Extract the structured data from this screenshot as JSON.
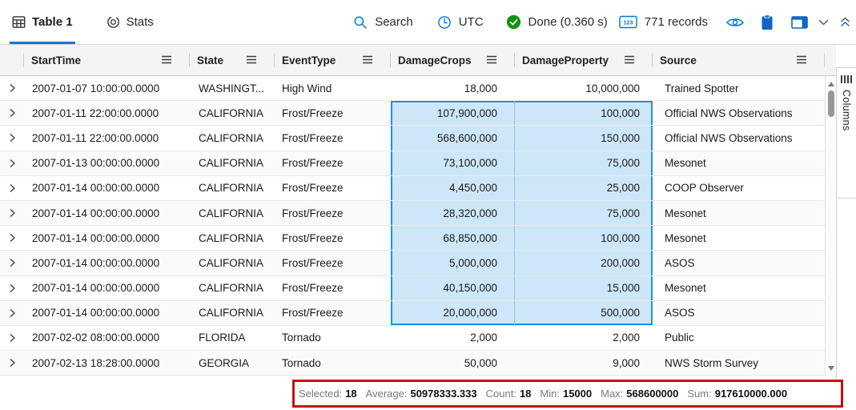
{
  "toolbar": {
    "tabs": [
      {
        "id": "table1",
        "label": "Table 1",
        "icon": "table-grid-icon",
        "active": true
      },
      {
        "id": "stats",
        "label": "Stats",
        "icon": "donut-chart-icon",
        "active": false
      }
    ],
    "search_label": "Search",
    "timezone_label": "UTC",
    "query_status": "Done (0.360 s)",
    "record_count": "771 records",
    "icons": [
      "search-icon",
      "clock-icon",
      "done-check-icon",
      "number-badge-icon",
      "eye-icon",
      "clipboard-icon",
      "panel-layout-icon",
      "chevron-down-icon",
      "collapse-up-icon"
    ]
  },
  "grid": {
    "columns": [
      {
        "label": "StartTime",
        "align": "left"
      },
      {
        "label": "State",
        "align": "left"
      },
      {
        "label": "EventType",
        "align": "left"
      },
      {
        "label": "DamageCrops",
        "align": "right"
      },
      {
        "label": "DamageProperty",
        "align": "right"
      },
      {
        "label": "Source",
        "align": "left"
      }
    ],
    "rows": [
      {
        "startTime": "2007-01-07 10:00:00.0000",
        "state": "WASHINGT...",
        "eventType": "High Wind",
        "damageCrops": "18,000",
        "damageProperty": "10,000,000",
        "source": "Trained Spotter",
        "selected": false
      },
      {
        "startTime": "2007-01-11 22:00:00.0000",
        "state": "CALIFORNIA",
        "eventType": "Frost/Freeze",
        "damageCrops": "107,900,000",
        "damageProperty": "100,000",
        "source": "Official NWS Observations",
        "selected": true
      },
      {
        "startTime": "2007-01-11 22:00:00.0000",
        "state": "CALIFORNIA",
        "eventType": "Frost/Freeze",
        "damageCrops": "568,600,000",
        "damageProperty": "150,000",
        "source": "Official NWS Observations",
        "selected": true
      },
      {
        "startTime": "2007-01-13 00:00:00.0000",
        "state": "CALIFORNIA",
        "eventType": "Frost/Freeze",
        "damageCrops": "73,100,000",
        "damageProperty": "75,000",
        "source": "Mesonet",
        "selected": true
      },
      {
        "startTime": "2007-01-14 00:00:00.0000",
        "state": "CALIFORNIA",
        "eventType": "Frost/Freeze",
        "damageCrops": "4,450,000",
        "damageProperty": "25,000",
        "source": "COOP Observer",
        "selected": true
      },
      {
        "startTime": "2007-01-14 00:00:00.0000",
        "state": "CALIFORNIA",
        "eventType": "Frost/Freeze",
        "damageCrops": "28,320,000",
        "damageProperty": "75,000",
        "source": "Mesonet",
        "selected": true
      },
      {
        "startTime": "2007-01-14 00:00:00.0000",
        "state": "CALIFORNIA",
        "eventType": "Frost/Freeze",
        "damageCrops": "68,850,000",
        "damageProperty": "100,000",
        "source": "Mesonet",
        "selected": true
      },
      {
        "startTime": "2007-01-14 00:00:00.0000",
        "state": "CALIFORNIA",
        "eventType": "Frost/Freeze",
        "damageCrops": "5,000,000",
        "damageProperty": "200,000",
        "source": "ASOS",
        "selected": true
      },
      {
        "startTime": "2007-01-14 00:00:00.0000",
        "state": "CALIFORNIA",
        "eventType": "Frost/Freeze",
        "damageCrops": "40,150,000",
        "damageProperty": "15,000",
        "source": "Mesonet",
        "selected": true
      },
      {
        "startTime": "2007-01-14 00:00:00.0000",
        "state": "CALIFORNIA",
        "eventType": "Frost/Freeze",
        "damageCrops": "20,000,000",
        "damageProperty": "500,000",
        "source": "ASOS",
        "selected": true
      },
      {
        "startTime": "2007-02-02 08:00:00.0000",
        "state": "FLORIDA",
        "eventType": "Tornado",
        "damageCrops": "2,000",
        "damageProperty": "2,000",
        "source": "Public",
        "selected": false
      },
      {
        "startTime": "2007-02-13 18:28:00.0000",
        "state": "GEORGIA",
        "eventType": "Tornado",
        "damageCrops": "50,000",
        "damageProperty": "9,000",
        "source": "NWS Storm Survey",
        "selected": false
      }
    ]
  },
  "columns_panel": {
    "label": "Columns",
    "icon": "column-bars-icon"
  },
  "stats_bar": {
    "items": [
      {
        "label": "Selected:",
        "value": "18"
      },
      {
        "label": "Average:",
        "value": "50978333.333"
      },
      {
        "label": "Count:",
        "value": "18"
      },
      {
        "label": "Min:",
        "value": "15000"
      },
      {
        "label": "Max:",
        "value": "568600000"
      },
      {
        "label": "Sum:",
        "value": "917610000.000"
      }
    ]
  },
  "colors": {
    "accent": "#0078d4",
    "status_green": "#149114",
    "selection_fill": "#cde7f8",
    "selection_border": "#2392e0",
    "annotation_red": "#c6100e"
  }
}
